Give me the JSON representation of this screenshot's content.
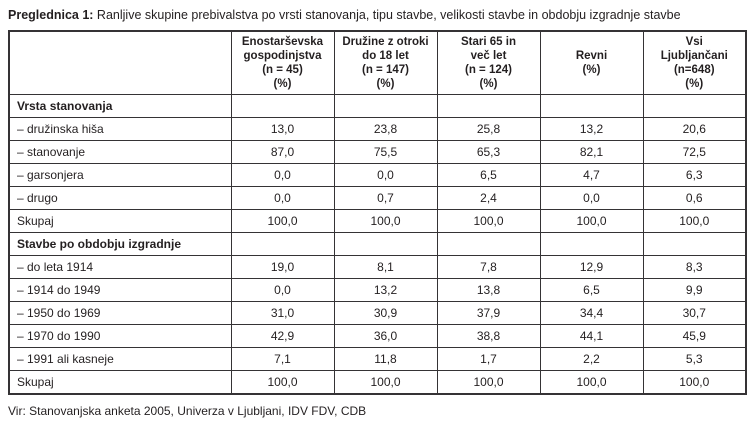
{
  "page": {
    "title_label": "Preglednica 1:",
    "title_text": " Ranljive skupine prebivalstva po vrsti stanovanja, tipu stavbe, velikosti stavbe in obdobju izgradnje stavbe",
    "source": "Vir: Stanovanjska anketa 2005, Univerza v Ljubljani, IDV FDV, CDB"
  },
  "colors": {
    "text": "#231f20",
    "border": "#353335",
    "background": "#ffffff"
  },
  "table": {
    "header": {
      "row_label_column": "",
      "columns": [
        "Enostarševska\ngospodinjstva\n(n = 45)\n(%)",
        "Družine z otroki\ndo 18 let\n(n = 147)\n(%)",
        "Stari 65 in\nveč let\n(n = 124)\n(%)",
        "Revni\n(%)",
        "Vsi\nLjubljančani\n(n=648)\n(%)"
      ]
    },
    "rows": [
      {
        "type": "section",
        "label": "Vrsta stanovanja",
        "values": [
          "",
          "",
          "",
          "",
          ""
        ]
      },
      {
        "type": "item",
        "label": "– družinska hiša",
        "values": [
          "13,0",
          "23,8",
          "25,8",
          "13,2",
          "20,6"
        ]
      },
      {
        "type": "item",
        "label": "– stanovanje",
        "values": [
          "87,0",
          "75,5",
          "65,3",
          "82,1",
          "72,5"
        ]
      },
      {
        "type": "item",
        "label": "– garsonjera",
        "values": [
          "0,0",
          "0,0",
          "6,5",
          "4,7",
          "6,3"
        ]
      },
      {
        "type": "item",
        "label": "– drugo",
        "values": [
          "0,0",
          "0,7",
          "2,4",
          "0,0",
          "0,6"
        ]
      },
      {
        "type": "total",
        "label": "Skupaj",
        "values": [
          "100,0",
          "100,0",
          "100,0",
          "100,0",
          "100,0"
        ]
      },
      {
        "type": "section",
        "label": "Stavbe po obdobju izgradnje",
        "values": [
          "",
          "",
          "",
          "",
          ""
        ]
      },
      {
        "type": "item",
        "label": "– do leta 1914",
        "values": [
          "19,0",
          "8,1",
          "7,8",
          "12,9",
          "8,3"
        ]
      },
      {
        "type": "item",
        "label": "– 1914 do 1949",
        "values": [
          "0,0",
          "13,2",
          "13,8",
          "6,5",
          "9,9"
        ]
      },
      {
        "type": "item",
        "label": "– 1950 do 1969",
        "values": [
          "31,0",
          "30,9",
          "37,9",
          "34,4",
          "30,7"
        ]
      },
      {
        "type": "item",
        "label": "– 1970 do 1990",
        "values": [
          "42,9",
          "36,0",
          "38,8",
          "44,1",
          "45,9"
        ]
      },
      {
        "type": "item",
        "label": "– 1991 ali kasneje",
        "values": [
          "7,1",
          "11,8",
          "1,7",
          "2,2",
          "5,3"
        ]
      },
      {
        "type": "total",
        "label": "Skupaj",
        "values": [
          "100,0",
          "100,0",
          "100,0",
          "100,0",
          "100,0"
        ]
      }
    ]
  }
}
